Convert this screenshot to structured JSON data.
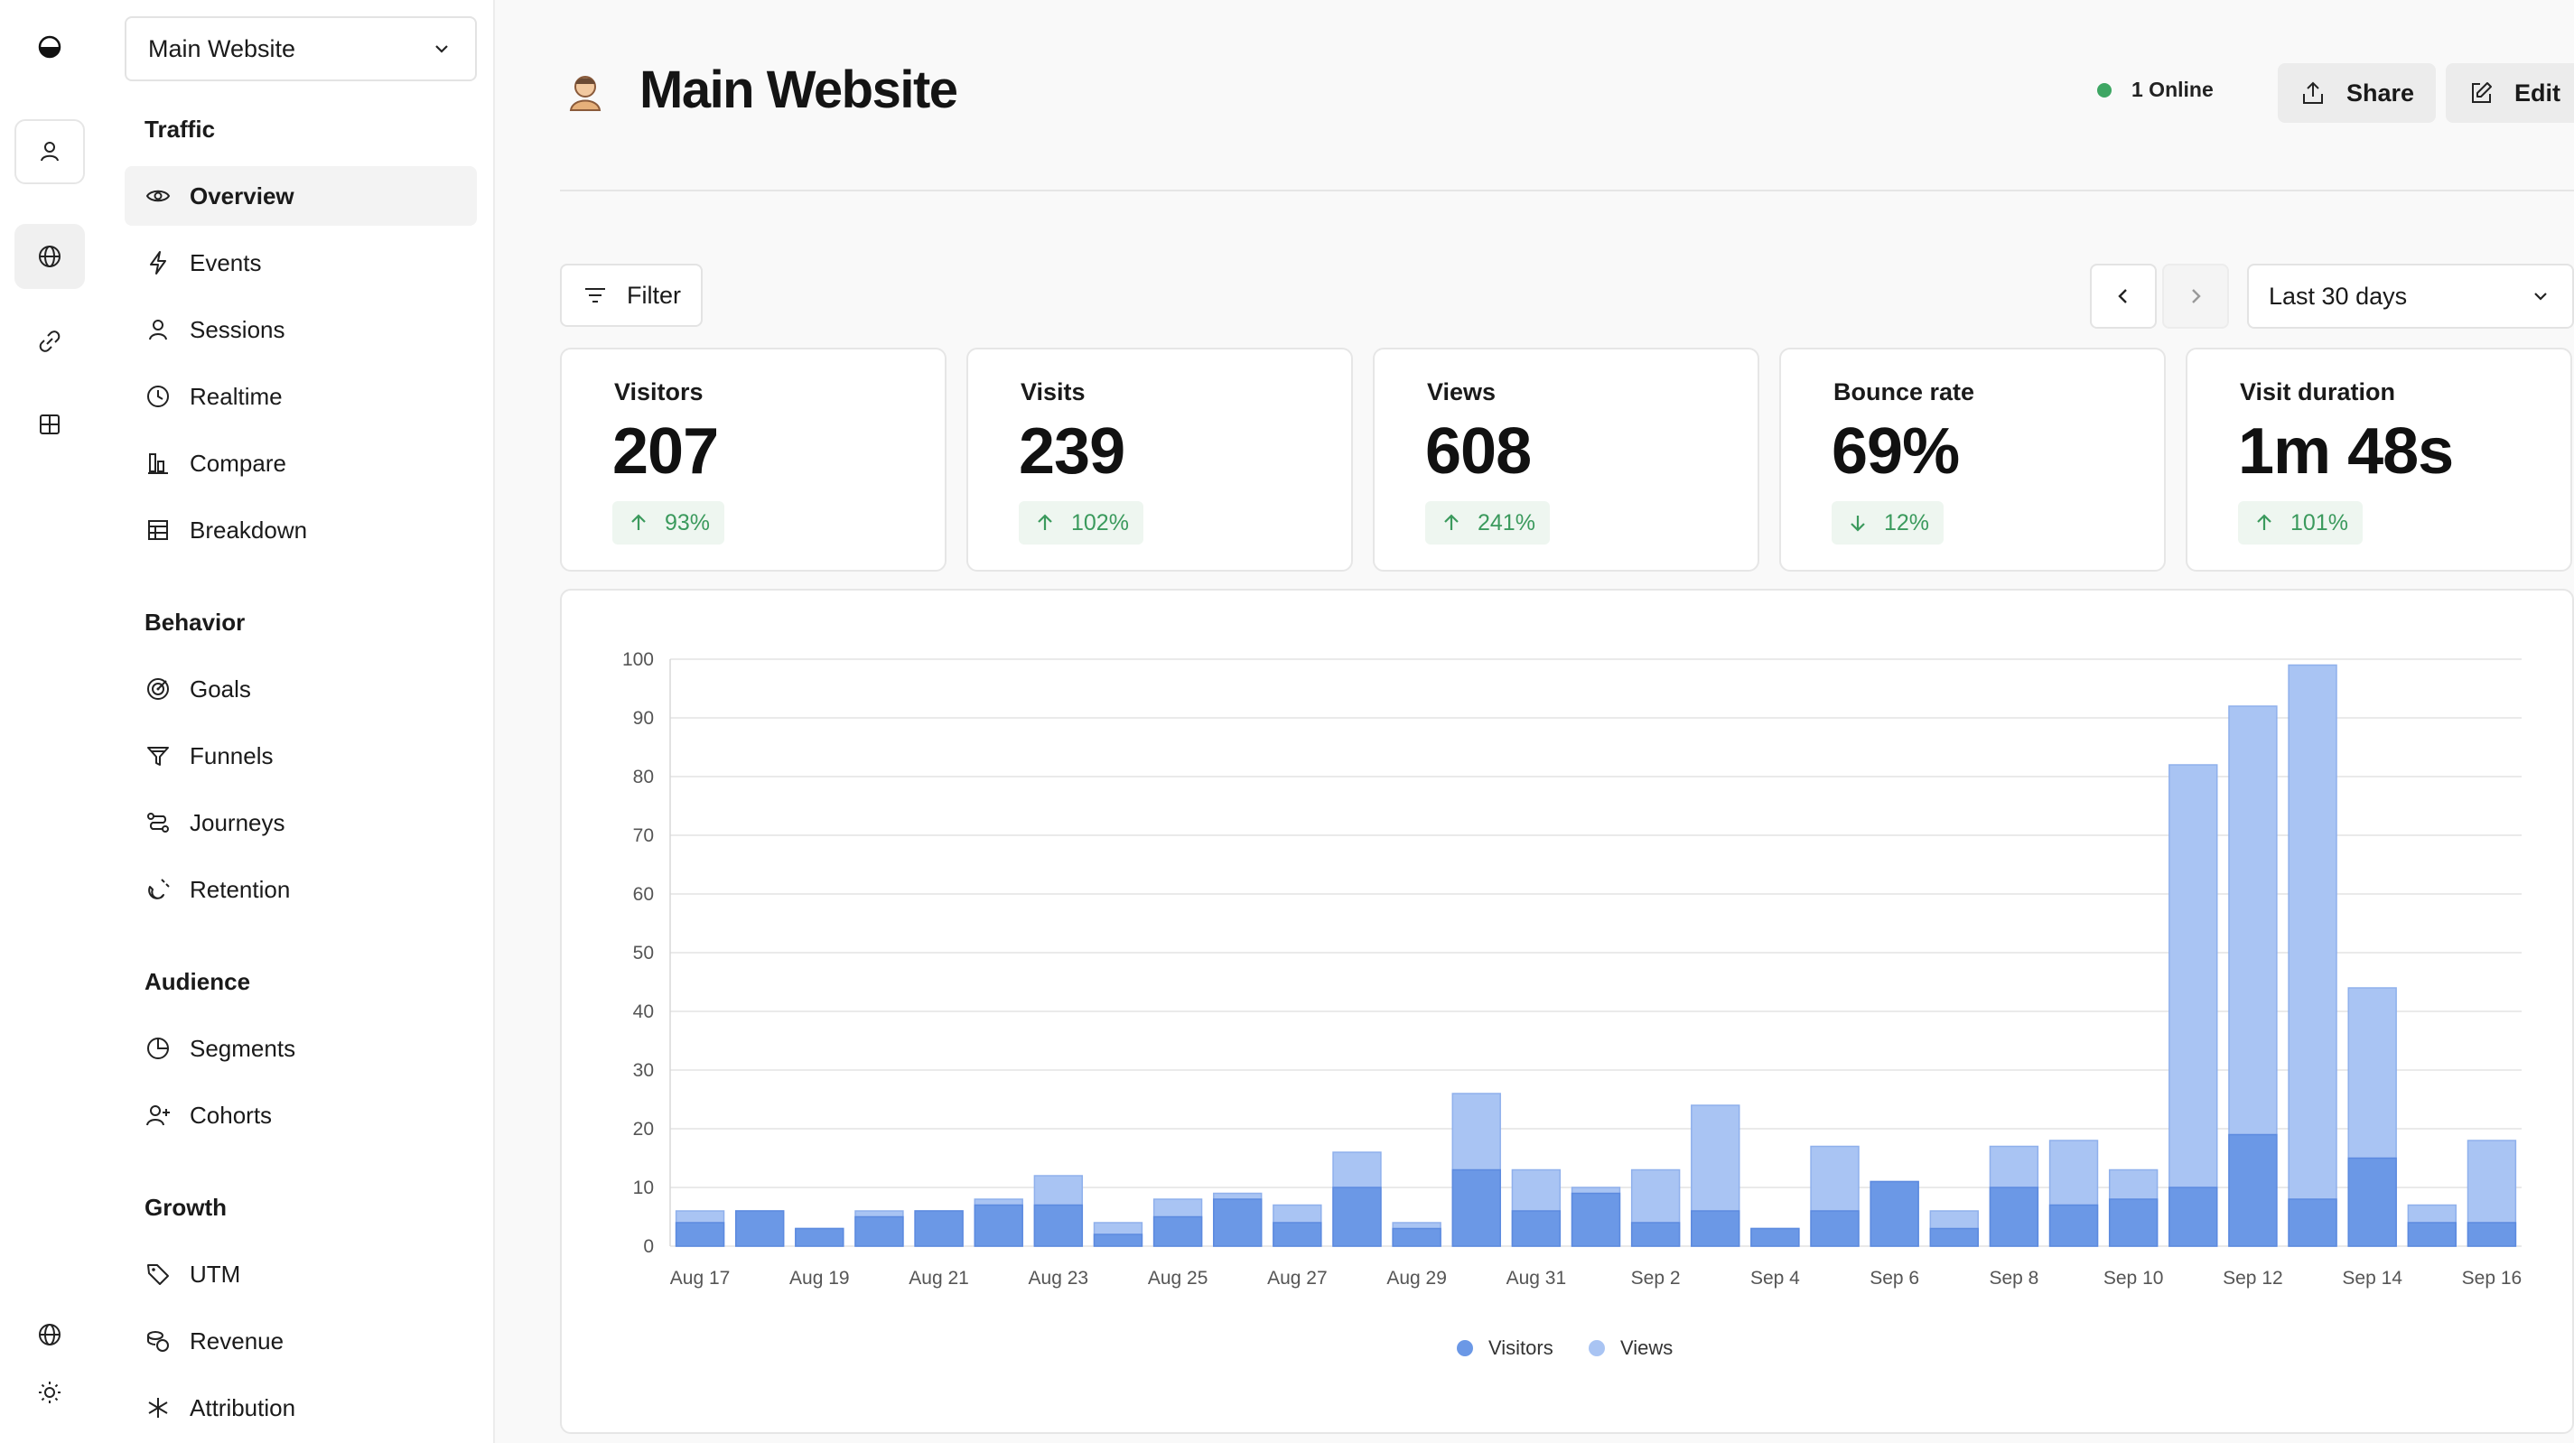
{
  "rail": {
    "items": [
      "logo-icon",
      "user-icon",
      "globe-icon",
      "link-icon",
      "grid-icon"
    ],
    "bottom": [
      "globe-icon",
      "sun-icon"
    ]
  },
  "sidebar": {
    "site_selector": "Main Website",
    "sections": [
      {
        "title": "Traffic",
        "items": [
          "Overview",
          "Events",
          "Sessions",
          "Realtime",
          "Compare",
          "Breakdown"
        ]
      },
      {
        "title": "Behavior",
        "items": [
          "Goals",
          "Funnels",
          "Journeys",
          "Retention"
        ]
      },
      {
        "title": "Audience",
        "items": [
          "Segments",
          "Cohorts"
        ]
      },
      {
        "title": "Growth",
        "items": [
          "UTM",
          "Revenue",
          "Attribution"
        ]
      }
    ],
    "active_item": "Overview"
  },
  "header": {
    "title": "Main Website",
    "online": "1 Online",
    "share_label": "Share",
    "edit_label": "Edit",
    "online_color": "#3ea663"
  },
  "toolbar": {
    "filter_label": "Filter",
    "date_range": "Last 30 days"
  },
  "metrics": [
    {
      "label": "Visitors",
      "value": "207",
      "change": "93%",
      "direction": "up"
    },
    {
      "label": "Visits",
      "value": "239",
      "change": "102%",
      "direction": "up"
    },
    {
      "label": "Views",
      "value": "608",
      "change": "241%",
      "direction": "up"
    },
    {
      "label": "Bounce rate",
      "value": "69%",
      "change": "12%",
      "direction": "down"
    },
    {
      "label": "Visit duration",
      "value": "1m 48s",
      "change": "101%",
      "direction": "up"
    }
  ],
  "chart_data": {
    "type": "bar",
    "categories": [
      "Aug 17",
      "Aug 18",
      "Aug 19",
      "Aug 20",
      "Aug 21",
      "Aug 22",
      "Aug 23",
      "Aug 24",
      "Aug 25",
      "Aug 26",
      "Aug 27",
      "Aug 28",
      "Aug 29",
      "Aug 30",
      "Aug 31",
      "Sep 1",
      "Sep 2",
      "Sep 3",
      "Sep 4",
      "Sep 5",
      "Sep 6",
      "Sep 7",
      "Sep 8",
      "Sep 9",
      "Sep 10",
      "Sep 11",
      "Sep 12",
      "Sep 13",
      "Sep 14",
      "Sep 15",
      "Sep 16"
    ],
    "tick_labels": [
      "Aug 17",
      "Aug 19",
      "Aug 21",
      "Aug 23",
      "Aug 25",
      "Aug 27",
      "Aug 29",
      "Aug 31",
      "Sep 2",
      "Sep 4",
      "Sep 6",
      "Sep 8",
      "Sep 10",
      "Sep 12",
      "Sep 14",
      "Sep 16"
    ],
    "series": [
      {
        "name": "Visitors",
        "color": "#6b98e6",
        "values": [
          4,
          6,
          3,
          5,
          6,
          7,
          7,
          2,
          5,
          8,
          4,
          10,
          3,
          13,
          6,
          9,
          4,
          6,
          3,
          6,
          11,
          3,
          10,
          7,
          8,
          10,
          19,
          8,
          15,
          4,
          4
        ]
      },
      {
        "name": "Views",
        "color": "#a9c4f3",
        "values": [
          6,
          6,
          3,
          6,
          6,
          8,
          12,
          4,
          8,
          9,
          7,
          16,
          4,
          26,
          13,
          10,
          13,
          24,
          3,
          17,
          11,
          6,
          17,
          18,
          13,
          82,
          92,
          99,
          44,
          7,
          18
        ]
      }
    ],
    "ylim": [
      0,
      100
    ],
    "yticks": [
      "0",
      "10",
      "20",
      "30",
      "40",
      "50",
      "60",
      "70",
      "80",
      "90",
      "100"
    ],
    "grid": true,
    "legend": "bottom-center"
  }
}
